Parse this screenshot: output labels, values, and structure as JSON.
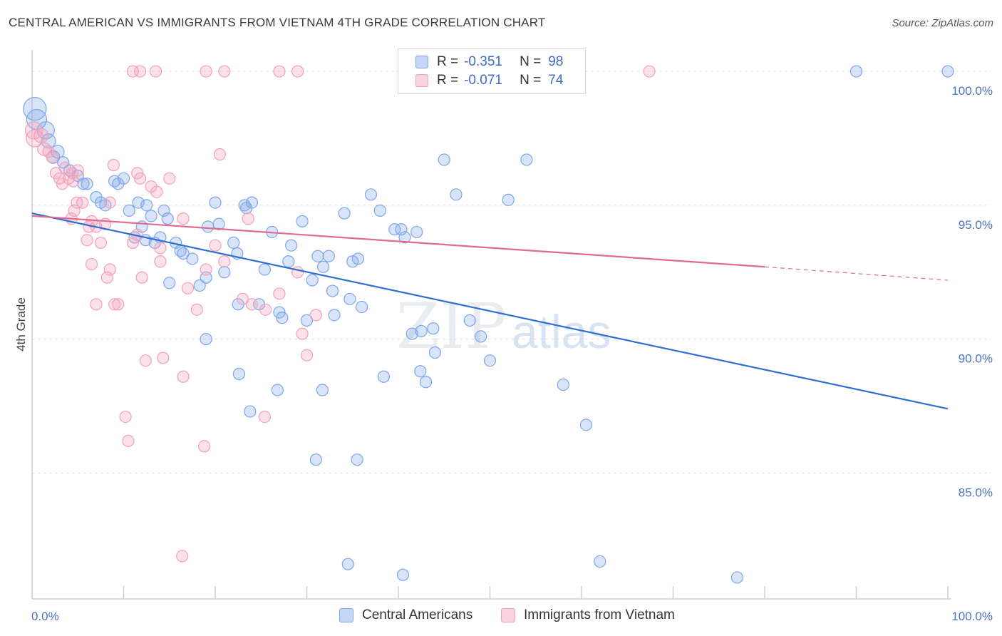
{
  "title": "CENTRAL AMERICAN VS IMMIGRANTS FROM VIETNAM 4TH GRADE CORRELATION CHART",
  "source": "Source: ZipAtlas.com",
  "watermark": {
    "zip": "ZIP",
    "atlas": "atlas"
  },
  "legend": {
    "rows": [
      {
        "r_key": "R =",
        "r_value": "-0.351",
        "n_key": "N =",
        "n_value": "98",
        "color": "#7fa6e8"
      },
      {
        "r_key": "R =",
        "r_value": "-0.071",
        "n_key": "N =",
        "n_value": "74",
        "color": "#f2a0b8"
      }
    ]
  },
  "bottom_legend": [
    {
      "label": "Central Americans",
      "color": "#7fa6e8"
    },
    {
      "label": "Immigrants from Vietnam",
      "color": "#f2a0b8"
    }
  ],
  "chart_data": {
    "type": "scatter",
    "title": "CENTRAL AMERICAN VS IMMIGRANTS FROM VIETNAM 4TH GRADE CORRELATION CHART",
    "xlabel": "",
    "ylabel": "4th Grade",
    "xlim": [
      0,
      100
    ],
    "ylim": [
      80.3,
      100.8
    ],
    "x_tick_labels": [
      {
        "value": 0,
        "label": "0.0%"
      },
      {
        "value": 100,
        "label": "100.0%"
      }
    ],
    "y_tick_labels": [
      {
        "value": 85,
        "label": "85.0%"
      },
      {
        "value": 90,
        "label": "90.0%"
      },
      {
        "value": 95,
        "label": "95.0%"
      },
      {
        "value": 100,
        "label": "100.0%"
      }
    ],
    "grid": true,
    "legend_position": "top-center",
    "series": [
      {
        "name": "Central Americans",
        "color": "#7fa6e8",
        "line_color": "#2f6fd0",
        "r": -0.351,
        "n": 98,
        "trend": {
          "x": [
            0,
            100
          ],
          "y": [
            94.7,
            87.4
          ]
        },
        "points": [
          [
            0.3,
            98.6,
            16
          ],
          [
            0.5,
            98.2,
            14
          ],
          [
            1.5,
            97.8,
            12
          ],
          [
            1.8,
            97.4,
            10
          ],
          [
            2.3,
            96.8,
            9
          ],
          [
            2.8,
            97.0,
            9
          ],
          [
            3.4,
            96.6,
            8
          ],
          [
            4.1,
            96.3,
            8
          ],
          [
            5.0,
            96.1,
            8
          ],
          [
            5.6,
            95.8,
            8
          ],
          [
            6.0,
            95.8,
            8
          ],
          [
            7.0,
            95.3,
            8
          ],
          [
            7.5,
            95.1,
            8
          ],
          [
            8.0,
            95.0,
            8
          ],
          [
            9.0,
            95.9,
            8
          ],
          [
            9.4,
            95.8,
            8
          ],
          [
            10.0,
            96.0,
            8
          ],
          [
            10.6,
            94.8,
            8
          ],
          [
            11.2,
            93.8,
            8
          ],
          [
            11.6,
            95.1,
            8
          ],
          [
            12.0,
            94.2,
            8
          ],
          [
            12.4,
            93.7,
            8
          ],
          [
            13.4,
            93.6,
            8
          ],
          [
            12.5,
            95.0,
            8
          ],
          [
            14.4,
            94.8,
            8
          ],
          [
            13.0,
            94.6,
            8
          ],
          [
            14.8,
            94.5,
            8
          ],
          [
            15.7,
            93.6,
            8
          ],
          [
            14.0,
            93.8,
            8
          ],
          [
            16.2,
            93.3,
            8
          ],
          [
            17.5,
            93.0,
            8
          ],
          [
            18.3,
            92.0,
            8
          ],
          [
            15.0,
            92.1,
            8
          ],
          [
            16.5,
            93.2,
            8
          ],
          [
            19.0,
            92.3,
            8
          ],
          [
            19.2,
            94.2,
            8
          ],
          [
            20.4,
            94.3,
            8
          ],
          [
            20.0,
            95.1,
            8
          ],
          [
            22.0,
            93.6,
            8
          ],
          [
            23.4,
            94.9,
            8
          ],
          [
            22.4,
            93.2,
            8
          ],
          [
            23.2,
            95.0,
            8
          ],
          [
            24.0,
            95.1,
            8
          ],
          [
            21.0,
            92.5,
            8
          ],
          [
            22.5,
            91.3,
            8
          ],
          [
            24.8,
            91.3,
            8
          ],
          [
            25.4,
            92.6,
            8
          ],
          [
            26.2,
            94.0,
            8
          ],
          [
            27.0,
            91.0,
            8
          ],
          [
            27.3,
            90.8,
            8
          ],
          [
            28.0,
            92.9,
            8
          ],
          [
            28.3,
            93.5,
            8
          ],
          [
            29.5,
            94.4,
            8
          ],
          [
            30.0,
            90.7,
            8
          ],
          [
            30.6,
            92.2,
            8
          ],
          [
            31.2,
            93.1,
            8
          ],
          [
            31.8,
            92.7,
            8
          ],
          [
            32.4,
            93.1,
            8
          ],
          [
            32.8,
            91.8,
            8
          ],
          [
            33.0,
            90.9,
            8
          ],
          [
            34.1,
            94.7,
            8
          ],
          [
            34.7,
            91.5,
            8
          ],
          [
            35.0,
            92.9,
            8
          ],
          [
            35.6,
            93.0,
            8
          ],
          [
            36.0,
            91.2,
            8
          ],
          [
            37.0,
            95.4,
            8
          ],
          [
            38.0,
            94.8,
            8
          ],
          [
            38.4,
            88.6,
            8
          ],
          [
            39.6,
            94.1,
            8
          ],
          [
            40.3,
            94.1,
            8
          ],
          [
            40.7,
            93.8,
            8
          ],
          [
            42.5,
            90.3,
            8
          ],
          [
            41.5,
            90.2,
            8
          ],
          [
            42.4,
            88.8,
            8
          ],
          [
            43.0,
            88.4,
            8
          ],
          [
            44.0,
            89.5,
            8
          ],
          [
            42.0,
            94.0,
            8
          ],
          [
            43.8,
            90.4,
            8
          ],
          [
            45.0,
            96.7,
            8
          ],
          [
            46.3,
            95.4,
            8
          ],
          [
            47.8,
            90.7,
            8
          ],
          [
            49.0,
            90.1,
            8
          ],
          [
            50.0,
            89.2,
            8
          ],
          [
            52.0,
            95.2,
            8
          ],
          [
            54.0,
            96.7,
            8
          ],
          [
            58.0,
            88.3,
            8
          ],
          [
            60.5,
            86.8,
            8
          ],
          [
            23.8,
            87.3,
            8
          ],
          [
            26.8,
            88.1,
            8
          ],
          [
            31.7,
            88.1,
            8
          ],
          [
            31.0,
            85.5,
            8
          ],
          [
            35.5,
            85.5,
            8
          ],
          [
            19.0,
            90.0,
            8
          ],
          [
            22.6,
            88.7,
            8
          ],
          [
            34.5,
            81.6,
            8
          ],
          [
            40.5,
            81.2,
            8
          ],
          [
            62.0,
            81.7,
            8
          ],
          [
            77.0,
            81.1,
            8
          ],
          [
            90.0,
            100.0,
            8
          ],
          [
            100.0,
            100.0,
            8
          ]
        ]
      },
      {
        "name": "Immigrants from Vietnam",
        "color": "#f2a0b8",
        "line_color": "#e06b92",
        "r": -0.071,
        "n": 74,
        "trend": {
          "x": [
            0,
            80
          ],
          "y": [
            94.6,
            92.7
          ]
        },
        "trend_dashed": {
          "x": [
            80,
            100
          ],
          "y": [
            92.7,
            92.2
          ]
        },
        "points": [
          [
            0.2,
            97.8,
            12
          ],
          [
            0.3,
            97.5,
            12
          ],
          [
            1.0,
            97.6,
            10
          ],
          [
            1.3,
            97.1,
            9
          ],
          [
            1.8,
            97.0,
            8
          ],
          [
            2.2,
            96.8,
            8
          ],
          [
            2.6,
            96.2,
            8
          ],
          [
            3.0,
            96.0,
            8
          ],
          [
            3.3,
            95.8,
            8
          ],
          [
            3.6,
            96.4,
            8
          ],
          [
            4.0,
            96.0,
            8
          ],
          [
            4.4,
            96.2,
            8
          ],
          [
            5.0,
            96.3,
            8
          ],
          [
            4.5,
            95.9,
            8
          ],
          [
            5.5,
            95.1,
            8
          ],
          [
            4.6,
            94.8,
            8
          ],
          [
            4.3,
            94.5,
            8
          ],
          [
            4.9,
            95.1,
            8
          ],
          [
            6.2,
            94.2,
            8
          ],
          [
            6.0,
            93.7,
            8
          ],
          [
            6.5,
            94.4,
            8
          ],
          [
            7.0,
            94.2,
            8
          ],
          [
            7.5,
            93.6,
            8
          ],
          [
            8.0,
            94.3,
            8
          ],
          [
            8.5,
            95.1,
            8
          ],
          [
            6.5,
            92.8,
            8
          ],
          [
            8.2,
            92.3,
            8
          ],
          [
            8.5,
            92.6,
            8
          ],
          [
            9.0,
            91.3,
            8
          ],
          [
            9.4,
            91.3,
            8
          ],
          [
            11.0,
            93.6,
            8
          ],
          [
            11.5,
            96.2,
            8
          ],
          [
            11.8,
            96.0,
            8
          ],
          [
            11.5,
            93.9,
            8
          ],
          [
            12.0,
            92.3,
            8
          ],
          [
            13.0,
            95.7,
            8
          ],
          [
            14.0,
            93.4,
            8
          ],
          [
            14.0,
            92.9,
            8
          ],
          [
            13.6,
            95.5,
            8
          ],
          [
            15.0,
            96.0,
            8
          ],
          [
            16.5,
            94.5,
            8
          ],
          [
            17.0,
            91.9,
            8
          ],
          [
            18.0,
            91.1,
            8
          ],
          [
            19.0,
            92.6,
            8
          ],
          [
            20.0,
            93.5,
            8
          ],
          [
            20.5,
            96.9,
            8
          ],
          [
            21.0,
            92.9,
            8
          ],
          [
            23.0,
            91.5,
            8
          ],
          [
            23.6,
            94.5,
            8
          ],
          [
            24.0,
            91.3,
            8
          ],
          [
            25.5,
            91.1,
            8
          ],
          [
            27.0,
            91.7,
            8
          ],
          [
            29.0,
            92.5,
            8
          ],
          [
            29.5,
            90.2,
            8
          ],
          [
            30.0,
            89.4,
            8
          ],
          [
            31.0,
            90.9,
            8
          ],
          [
            8.9,
            96.5,
            8
          ],
          [
            7.0,
            91.3,
            8
          ],
          [
            12.4,
            89.2,
            8
          ],
          [
            14.3,
            89.3,
            8
          ],
          [
            16.5,
            88.6,
            8
          ],
          [
            10.2,
            87.1,
            8
          ],
          [
            10.5,
            86.2,
            8
          ],
          [
            18.8,
            86.0,
            8
          ],
          [
            25.4,
            87.1,
            8
          ],
          [
            16.4,
            81.9,
            8
          ],
          [
            11.0,
            100.0,
            8
          ],
          [
            13.5,
            100.0,
            8
          ],
          [
            11.8,
            100.0,
            8
          ],
          [
            19.0,
            100.0,
            8
          ],
          [
            21.0,
            100.0,
            8
          ],
          [
            27.0,
            100.0,
            8
          ],
          [
            29.0,
            100.0,
            8
          ],
          [
            67.4,
            100.0,
            8
          ]
        ]
      }
    ]
  }
}
